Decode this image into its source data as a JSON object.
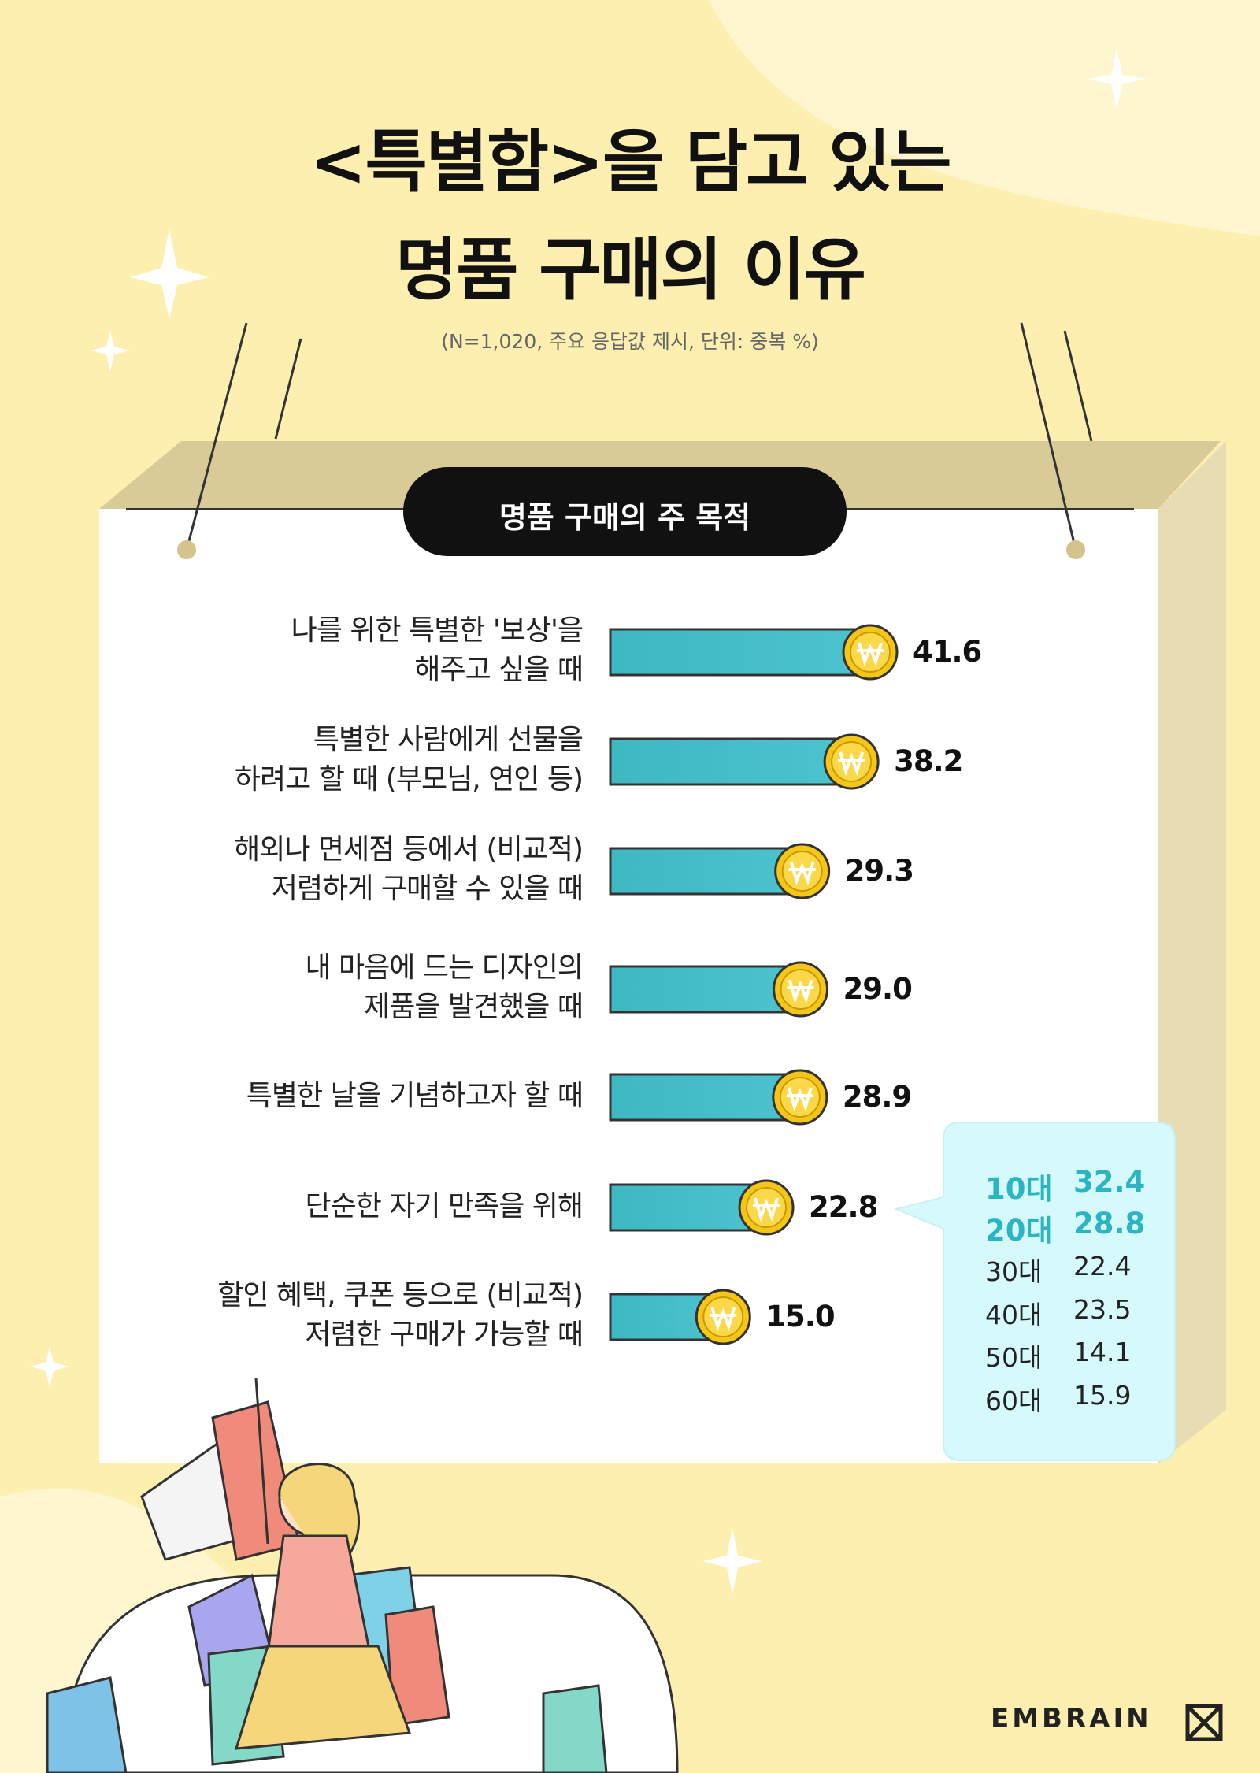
{
  "title": [
    "<특별함>을 담고 있는",
    "명품 구매의 이유"
  ],
  "subtitle": "(N=1,020, 주요 응답값 제시, 단위: 중복 %)",
  "chart_data": {
    "type": "bar",
    "orientation": "horizontal",
    "title": "명품 구매의 주 목적",
    "categories": [
      "나를 위한 특별한 '보상'을\n해주고 싶을 때",
      "특별한 사람에게 선물을\n하려고 할 때 (부모님, 연인 등)",
      "해외나 면세점 등에서 (비교적)\n저렴하게 구매할 수 있을 때",
      "내 마음에 드는 디자인의\n제품을 발견했을 때",
      "특별한 날을 기념하고자 할 때",
      "단순한 자기 만족을 위해",
      "할인 혜택, 쿠폰 등으로 (비교적)\n저렴한 구매가 가능할 때"
    ],
    "values": [
      41.6,
      38.2,
      29.3,
      29.0,
      28.9,
      22.8,
      15.0
    ],
    "value_labels": [
      "41.6",
      "38.2",
      "29.3",
      "29.0",
      "28.9",
      "22.8",
      "15.0"
    ],
    "color": "#4cc3cf"
  },
  "age_breakdown": {
    "rows": [
      {
        "label": "10대",
        "value": "32.4",
        "highlight": true
      },
      {
        "label": "20대",
        "value": "28.8",
        "highlight": true
      },
      {
        "label": "30대",
        "value": "22.4",
        "highlight": false
      },
      {
        "label": "40대",
        "value": "23.5",
        "highlight": false
      },
      {
        "label": "50대",
        "value": "14.1",
        "highlight": false
      },
      {
        "label": "60대",
        "value": "15.9",
        "highlight": false
      }
    ]
  },
  "logo": "EMBRAIN"
}
